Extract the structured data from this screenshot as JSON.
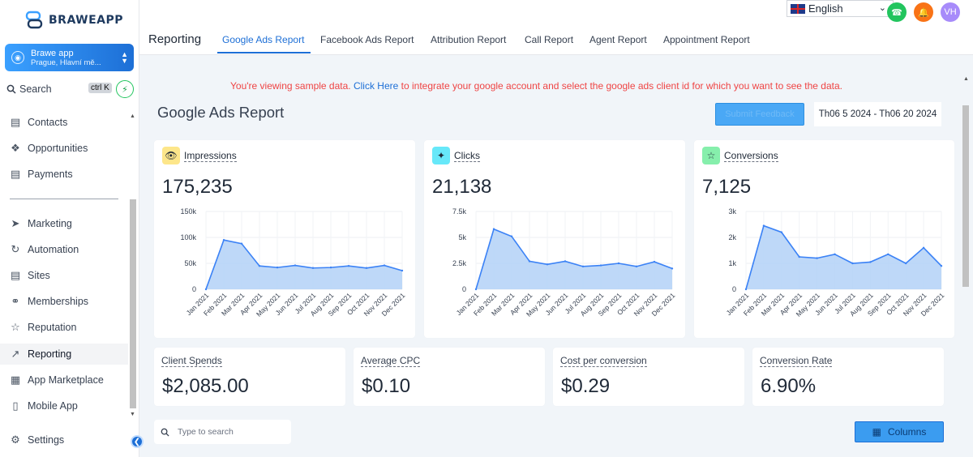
{
  "app": {
    "logo_text": "BRAWEAPP",
    "account_name": "Brawe app",
    "account_location": "Prague, Hlavní mě...",
    "search_label": "Search",
    "search_shortcut": "ctrl K"
  },
  "sidebar": {
    "items": [
      {
        "label": "Contacts",
        "icon": "contacts-icon"
      },
      {
        "label": "Opportunities",
        "icon": "opportunities-icon"
      },
      {
        "label": "Payments",
        "icon": "payments-icon"
      },
      {
        "label": "Marketing",
        "icon": "marketing-icon"
      },
      {
        "label": "Automation",
        "icon": "automation-icon"
      },
      {
        "label": "Sites",
        "icon": "sites-icon"
      },
      {
        "label": "Memberships",
        "icon": "memberships-icon"
      },
      {
        "label": "Reputation",
        "icon": "reputation-icon"
      },
      {
        "label": "Reporting",
        "icon": "reporting-icon",
        "active": true
      },
      {
        "label": "App Marketplace",
        "icon": "marketplace-icon"
      },
      {
        "label": "Mobile App",
        "icon": "mobile-icon"
      }
    ],
    "settings_label": "Settings"
  },
  "header": {
    "title": "Reporting",
    "tabs": [
      "Google Ads Report",
      "Facebook Ads Report",
      "Attribution Report",
      "Call Report",
      "Agent Report",
      "Appointment Report"
    ],
    "active_tab": "Google Ads Report",
    "language": "English",
    "user_initials": "VH"
  },
  "notice": {
    "before": "You're viewing sample data. ",
    "link": "Click Here",
    "after": " to integrate your google account and select the google ads client id for which you want to see the data."
  },
  "report": {
    "title": "Google Ads Report",
    "feedback_label": "Submit Feedback",
    "date_range": "Th06 5 2024 - Th06 20 2024"
  },
  "colors": {
    "accent": "#1d6fd6",
    "chart_fill": "#b3d1f7",
    "chart_line": "#3b82f6",
    "impressions_icon_bg": "#fde68a",
    "clicks_icon_bg": "#67e8f9",
    "conversions_icon_bg": "#86efac"
  },
  "metrics": {
    "impressions": {
      "label": "Impressions",
      "value": "175,235"
    },
    "clicks": {
      "label": "Clicks",
      "value": "21,138"
    },
    "conversions": {
      "label": "Conversions",
      "value": "7,125"
    }
  },
  "stats": [
    {
      "label": "Client Spends",
      "value": "$2,085.00"
    },
    {
      "label": "Average CPC",
      "value": "$0.10"
    },
    {
      "label": "Cost per conversion",
      "value": "$0.29"
    },
    {
      "label": "Conversion Rate",
      "value": "6.90%"
    }
  ],
  "table": {
    "search_placeholder": "Type to search",
    "columns_label": "Columns"
  },
  "chart_data": [
    {
      "type": "area",
      "name": "impressions",
      "categories": [
        "Jan 2021",
        "Feb 2021",
        "Mar 2021",
        "Apr 2021",
        "May 2021",
        "Jun 2021",
        "Jul 2021",
        "Aug 2021",
        "Sep 2021",
        "Oct 2021",
        "Nov 2021",
        "Dec 2021"
      ],
      "values": [
        0,
        95000,
        88000,
        45000,
        42000,
        46000,
        41000,
        42000,
        45000,
        41000,
        46000,
        36000
      ],
      "ylim": [
        0,
        150000
      ],
      "yticks": [
        "0",
        "50k",
        "100k",
        "150k"
      ],
      "grid": true
    },
    {
      "type": "area",
      "name": "clicks",
      "categories": [
        "Jan 2021",
        "Feb 2021",
        "Mar 2021",
        "Apr 2021",
        "May 2021",
        "Jun 2021",
        "Jul 2021",
        "Aug 2021",
        "Sep 2021",
        "Oct 2021",
        "Nov 2021",
        "Dec 2021"
      ],
      "values": [
        0,
        5800,
        5100,
        2700,
        2400,
        2700,
        2200,
        2300,
        2500,
        2200,
        2650,
        2000
      ],
      "ylim": [
        0,
        7500
      ],
      "yticks": [
        "0",
        "2.5k",
        "5k",
        "7.5k"
      ],
      "grid": true
    },
    {
      "type": "area",
      "name": "conversions",
      "categories": [
        "Jan 2021",
        "Feb 2021",
        "Mar 2021",
        "Apr 2021",
        "May 2021",
        "Jun 2021",
        "Jul 2021",
        "Aug 2021",
        "Sep 2021",
        "Oct 2021",
        "Nov 2021",
        "Dec 2021"
      ],
      "values": [
        0,
        2450,
        2200,
        1250,
        1200,
        1350,
        1000,
        1050,
        1350,
        1000,
        1600,
        900
      ],
      "ylim": [
        0,
        3000
      ],
      "yticks": [
        "0",
        "1k",
        "2k",
        "3k"
      ],
      "grid": true
    }
  ]
}
